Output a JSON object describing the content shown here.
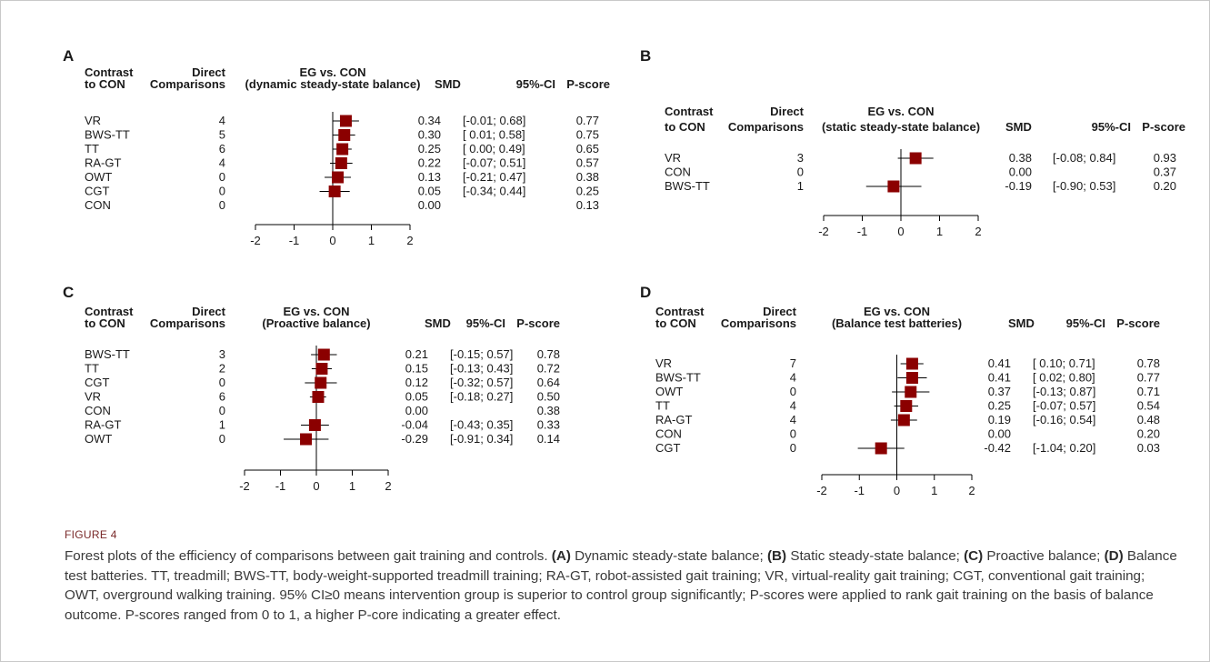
{
  "figure": {
    "label": "FIGURE 4",
    "caption_parts": [
      {
        "t": "Forest plots of the efficiency of comparisons between gait training and controls. ",
        "b": false
      },
      {
        "t": "(A)",
        "b": true
      },
      {
        "t": " Dynamic steady-state balance; ",
        "b": false
      },
      {
        "t": "(B)",
        "b": true
      },
      {
        "t": " Static steady-state balance; ",
        "b": false
      },
      {
        "t": "(C)",
        "b": true
      },
      {
        "t": " Proactive balance; ",
        "b": false
      },
      {
        "t": "(D)",
        "b": true
      },
      {
        "t": " Balance test batteries. TT, treadmill; BWS-TT, body-weight-supported treadmill training; RA-GT, robot-assisted gait training; VR, virtual-reality gait training; CGT, conventional gait training; OWT, overground walking training. 95% CI≥0 means intervention group is superior to control group significantly; P-scores were applied to rank gait training on the basis of balance outcome. P-scores ranged from 0 to 1, a higher P-core indicating a greater effect.",
        "b": false
      }
    ]
  },
  "colors": {
    "marker": "#8b0000",
    "line": "#000000"
  },
  "chart_data": [
    {
      "type": "forest",
      "panel": "A",
      "columns": [
        "Contrast",
        "to CON",
        "Direct",
        "Comparisons",
        "EG vs. CON",
        "(dynamic steady-state balance)",
        "SMD",
        "95%-CI",
        "P-score"
      ],
      "xlim": [
        -2,
        2
      ],
      "xticks": [
        -2,
        -1,
        0,
        1,
        2
      ],
      "rows": [
        {
          "label": "VR",
          "direct": "4",
          "smd": 0.34,
          "lo": -0.01,
          "hi": 0.68,
          "smd_txt": "0.34",
          "ci_txt": "[-0.01; 0.68]",
          "p": "0.77"
        },
        {
          "label": "BWS-TT",
          "direct": "5",
          "smd": 0.3,
          "lo": 0.01,
          "hi": 0.58,
          "smd_txt": "0.30",
          "ci_txt": "[ 0.01; 0.58]",
          "p": "0.75"
        },
        {
          "label": "TT",
          "direct": "6",
          "smd": 0.25,
          "lo": 0.0,
          "hi": 0.49,
          "smd_txt": "0.25",
          "ci_txt": "[ 0.00; 0.49]",
          "p": "0.65"
        },
        {
          "label": "RA-GT",
          "direct": "4",
          "smd": 0.22,
          "lo": -0.07,
          "hi": 0.51,
          "smd_txt": "0.22",
          "ci_txt": "[-0.07; 0.51]",
          "p": "0.57"
        },
        {
          "label": "OWT",
          "direct": "0",
          "smd": 0.13,
          "lo": -0.21,
          "hi": 0.47,
          "smd_txt": "0.13",
          "ci_txt": "[-0.21; 0.47]",
          "p": "0.38"
        },
        {
          "label": "CGT",
          "direct": "0",
          "smd": 0.05,
          "lo": -0.34,
          "hi": 0.44,
          "smd_txt": "0.05",
          "ci_txt": "[-0.34; 0.44]",
          "p": "0.25"
        },
        {
          "label": "CON",
          "direct": "0",
          "smd": 0.0,
          "lo": null,
          "hi": null,
          "smd_txt": "0.00",
          "ci_txt": "",
          "p": "0.13"
        }
      ]
    },
    {
      "type": "forest",
      "panel": "B",
      "columns": [
        "Contrast",
        "to CON",
        "Direct",
        "Comparisons",
        "EG vs. CON",
        "(static steady-state balance)",
        "SMD",
        "95%-CI",
        "P-score"
      ],
      "xlim": [
        -2,
        2
      ],
      "xticks": [
        -2,
        -1,
        0,
        1,
        2
      ],
      "rows": [
        {
          "label": "VR",
          "direct": "3",
          "smd": 0.38,
          "lo": -0.08,
          "hi": 0.84,
          "smd_txt": "0.38",
          "ci_txt": "[-0.08; 0.84]",
          "p": "0.93"
        },
        {
          "label": "CON",
          "direct": "0",
          "smd": 0.0,
          "lo": null,
          "hi": null,
          "smd_txt": "0.00",
          "ci_txt": "",
          "p": "0.37"
        },
        {
          "label": "BWS-TT",
          "direct": "1",
          "smd": -0.19,
          "lo": -0.9,
          "hi": 0.53,
          "smd_txt": "-0.19",
          "ci_txt": "[-0.90; 0.53]",
          "p": "0.20"
        }
      ]
    },
    {
      "type": "forest",
      "panel": "C",
      "columns": [
        "Contrast",
        "to CON",
        "Direct",
        "Comparisons",
        "EG vs. CON",
        "(Proactive balance)",
        "SMD",
        "95%-CI",
        "P-score"
      ],
      "xlim": [
        -2,
        2
      ],
      "xticks": [
        -2,
        -1,
        0,
        1,
        2
      ],
      "rows": [
        {
          "label": "BWS-TT",
          "direct": "3",
          "smd": 0.21,
          "lo": -0.15,
          "hi": 0.57,
          "smd_txt": "0.21",
          "ci_txt": "[-0.15; 0.57]",
          "p": "0.78"
        },
        {
          "label": "TT",
          "direct": "2",
          "smd": 0.15,
          "lo": -0.13,
          "hi": 0.43,
          "smd_txt": "0.15",
          "ci_txt": "[-0.13; 0.43]",
          "p": "0.72"
        },
        {
          "label": "CGT",
          "direct": "0",
          "smd": 0.12,
          "lo": -0.32,
          "hi": 0.57,
          "smd_txt": "0.12",
          "ci_txt": "[-0.32; 0.57]",
          "p": "0.64"
        },
        {
          "label": "VR",
          "direct": "6",
          "smd": 0.05,
          "lo": -0.18,
          "hi": 0.27,
          "smd_txt": "0.05",
          "ci_txt": "[-0.18; 0.27]",
          "p": "0.50"
        },
        {
          "label": "CON",
          "direct": "0",
          "smd": 0.0,
          "lo": null,
          "hi": null,
          "smd_txt": "0.00",
          "ci_txt": "",
          "p": "0.38"
        },
        {
          "label": "RA-GT",
          "direct": "1",
          "smd": -0.04,
          "lo": -0.43,
          "hi": 0.35,
          "smd_txt": "-0.04",
          "ci_txt": "[-0.43; 0.35]",
          "p": "0.33"
        },
        {
          "label": "OWT",
          "direct": "0",
          "smd": -0.29,
          "lo": -0.91,
          "hi": 0.34,
          "smd_txt": "-0.29",
          "ci_txt": "[-0.91; 0.34]",
          "p": "0.14"
        }
      ]
    },
    {
      "type": "forest",
      "panel": "D",
      "columns": [
        "Contrast",
        "to CON",
        "Direct",
        "Comparisons",
        "EG vs. CON",
        "(Balance test batteries)",
        "SMD",
        "95%-CI",
        "P-score"
      ],
      "xlim": [
        -2,
        2
      ],
      "xticks": [
        -2,
        -1,
        0,
        1,
        2
      ],
      "rows": [
        {
          "label": "VR",
          "direct": "7",
          "smd": 0.41,
          "lo": 0.1,
          "hi": 0.71,
          "smd_txt": "0.41",
          "ci_txt": "[ 0.10; 0.71]",
          "p": "0.78"
        },
        {
          "label": "BWS-TT",
          "direct": "4",
          "smd": 0.41,
          "lo": 0.02,
          "hi": 0.8,
          "smd_txt": "0.41",
          "ci_txt": "[ 0.02; 0.80]",
          "p": "0.77"
        },
        {
          "label": "OWT",
          "direct": "0",
          "smd": 0.37,
          "lo": -0.13,
          "hi": 0.87,
          "smd_txt": "0.37",
          "ci_txt": "[-0.13; 0.87]",
          "p": "0.71"
        },
        {
          "label": "TT",
          "direct": "4",
          "smd": 0.25,
          "lo": -0.07,
          "hi": 0.57,
          "smd_txt": "0.25",
          "ci_txt": "[-0.07; 0.57]",
          "p": "0.54"
        },
        {
          "label": "RA-GT",
          "direct": "4",
          "smd": 0.19,
          "lo": -0.16,
          "hi": 0.54,
          "smd_txt": "0.19",
          "ci_txt": "[-0.16; 0.54]",
          "p": "0.48"
        },
        {
          "label": "CON",
          "direct": "0",
          "smd": 0.0,
          "lo": null,
          "hi": null,
          "smd_txt": "0.00",
          "ci_txt": "",
          "p": "0.20"
        },
        {
          "label": "CGT",
          "direct": "0",
          "smd": -0.42,
          "lo": -1.04,
          "hi": 0.2,
          "smd_txt": "-0.42",
          "ci_txt": "[-1.04; 0.20]",
          "p": "0.03"
        }
      ]
    }
  ]
}
